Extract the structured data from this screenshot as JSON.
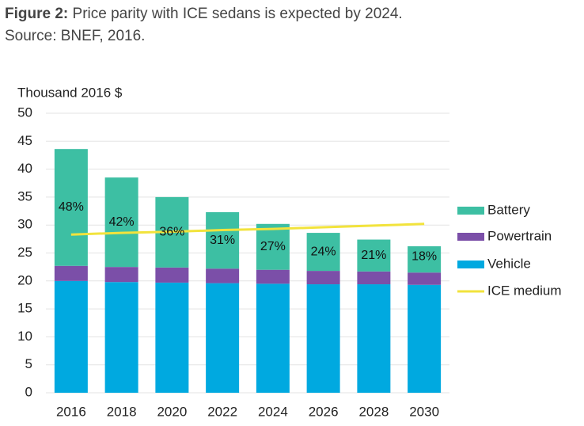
{
  "chart_data": {
    "type": "stacked-bar-line",
    "caption_label": "Figure 2:",
    "title": "Price parity with ICE sedans is expected by 2024.",
    "subtitle": "Source: BNEF, 2016.",
    "y_label": "Thousand 2016 $",
    "categories": [
      "2016",
      "2018",
      "2020",
      "2022",
      "2024",
      "2026",
      "2028",
      "2030"
    ],
    "series": [
      {
        "name": "Vehicle",
        "color": "#00a9e0",
        "values": [
          20.0,
          19.8,
          19.7,
          19.6,
          19.5,
          19.4,
          19.4,
          19.3
        ]
      },
      {
        "name": "Powertrain",
        "color": "#7b4fa8",
        "values": [
          2.7,
          2.7,
          2.7,
          2.6,
          2.5,
          2.4,
          2.3,
          2.2
        ]
      },
      {
        "name": "Battery",
        "color": "#3dbfa3",
        "values": [
          20.9,
          16.0,
          12.6,
          10.1,
          8.2,
          6.8,
          5.7,
          4.7
        ]
      },
      {
        "name": "ICE medium",
        "color": "#f2e33c",
        "type": "line",
        "values": [
          28.3,
          28.6,
          28.8,
          29.1,
          29.3,
          29.6,
          29.9,
          30.2
        ]
      }
    ],
    "battery_share_labels": [
      "48%",
      "42%",
      "36%",
      "31%",
      "27%",
      "24%",
      "21%",
      "18%"
    ],
    "legend_order": [
      2,
      1,
      0,
      3
    ],
    "legend": "right",
    "ylim": [
      0,
      50
    ],
    "yticks": [
      0,
      5,
      10,
      15,
      20,
      25,
      30,
      35,
      40,
      45,
      50
    ],
    "grid": true
  }
}
